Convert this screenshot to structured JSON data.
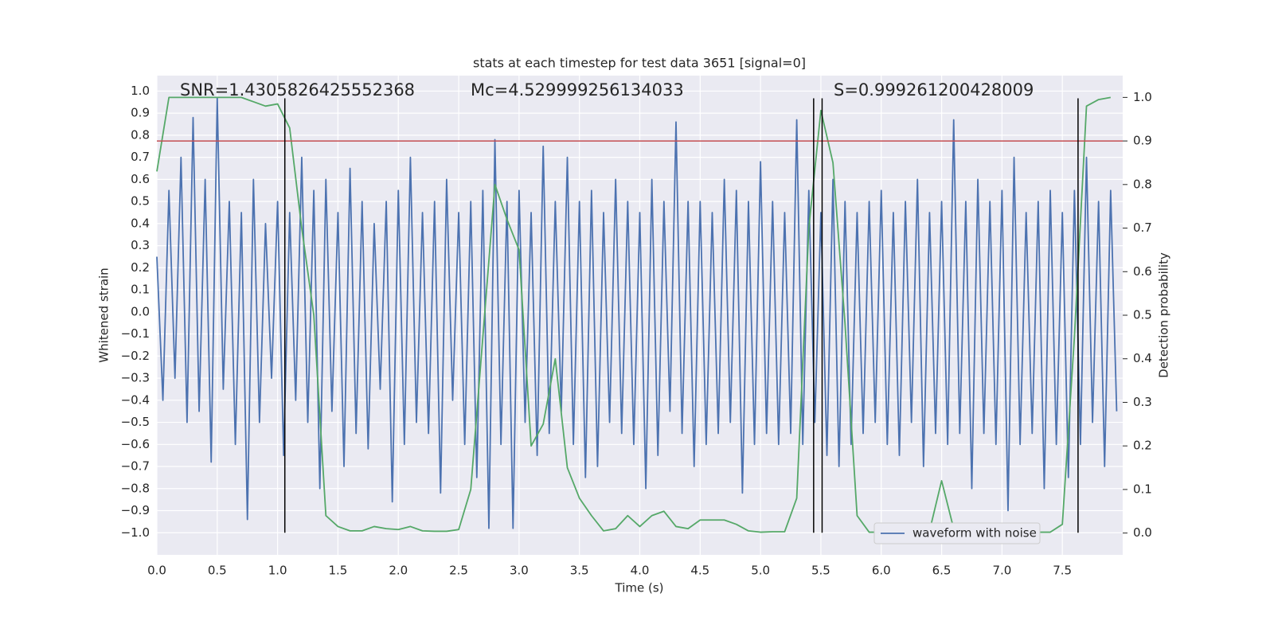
{
  "chart_data": {
    "type": "line",
    "title": "stats at each timestep for test data 3651 [signal=0]",
    "xlabel": "Time (s)",
    "ylabel": "Whitened strain",
    "y2label": "Detection probability",
    "annotations": [
      "SNR=1.4305826425552368",
      "Mc=4.529999256134033",
      "S=0.999261200428009"
    ],
    "xlim": [
      0,
      8
    ],
    "ylim": [
      -1.1,
      1.07
    ],
    "y2lim": [
      -0.05,
      1.05
    ],
    "grid": true,
    "legend": "lower right",
    "background": "#eaeaf2",
    "xticks": [
      {
        "value": 0,
        "label": "0.0"
      },
      0.5,
      {
        "value": 1,
        "label": "1.0"
      },
      1.5,
      {
        "value": 2,
        "label": "2.0"
      },
      2.5,
      {
        "value": 3,
        "label": "3.0"
      },
      3.5,
      {
        "value": 4,
        "label": "4.0"
      },
      4.5,
      {
        "value": 5,
        "label": "5.0"
      },
      5.5,
      {
        "value": 6,
        "label": "6.0"
      },
      6.5,
      {
        "value": 7,
        "label": "7.0"
      },
      7.5
    ],
    "yticks": [
      {
        "value": -1,
        "label": "−1.0"
      },
      {
        "value": -0.9,
        "label": "−0.9"
      },
      {
        "value": -0.8,
        "label": "−0.8"
      },
      {
        "value": -0.7,
        "label": "−0.7"
      },
      {
        "value": -0.6,
        "label": "−0.6"
      },
      {
        "value": -0.5,
        "label": "−0.5"
      },
      {
        "value": -0.4,
        "label": "−0.4"
      },
      {
        "value": -0.3,
        "label": "−0.3"
      },
      {
        "value": -0.2,
        "label": "−0.2"
      },
      {
        "value": -0.1,
        "label": "−0.1"
      },
      {
        "value": 0,
        "label": "0.0"
      },
      0.1,
      0.2,
      0.3,
      0.4,
      0.5,
      0.6,
      0.7,
      0.8,
      0.9,
      {
        "value": 1,
        "label": "1.0"
      }
    ],
    "y2ticks": [
      {
        "value": 0,
        "label": "0.0"
      },
      0.1,
      0.2,
      0.3,
      0.4,
      0.5,
      0.6,
      0.7,
      0.8,
      0.9,
      {
        "value": 1,
        "label": "1.0"
      }
    ],
    "vlines": [
      1.06,
      5.44,
      5.51,
      7.63
    ],
    "vline_color": "#000000",
    "hline": {
      "value": 0.9,
      "axis": "y2",
      "color": "#c44e52"
    },
    "series": [
      {
        "name": "waveform with noise",
        "color": "#4c72b0",
        "x": [
          0,
          0.05,
          0.1,
          0.15,
          0.2,
          0.25,
          0.3,
          0.35,
          0.4,
          0.45,
          0.5,
          0.55,
          0.6,
          0.65,
          0.7,
          0.75,
          0.8,
          0.85,
          0.9,
          0.95,
          1,
          1.05,
          1.1,
          1.15,
          1.2,
          1.25,
          1.3,
          1.35,
          1.4,
          1.45,
          1.5,
          1.55,
          1.6,
          1.65,
          1.7,
          1.75,
          1.8,
          1.85,
          1.9,
          1.95,
          2,
          2.05,
          2.1,
          2.15,
          2.2,
          2.25,
          2.3,
          2.35,
          2.4,
          2.45,
          2.5,
          2.55,
          2.6,
          2.65,
          2.7,
          2.75,
          2.8,
          2.85,
          2.9,
          2.95,
          3,
          3.05,
          3.1,
          3.15,
          3.2,
          3.25,
          3.3,
          3.35,
          3.4,
          3.45,
          3.5,
          3.55,
          3.6,
          3.65,
          3.7,
          3.75,
          3.8,
          3.85,
          3.9,
          3.95,
          4,
          4.05,
          4.1,
          4.15,
          4.2,
          4.25,
          4.3,
          4.35,
          4.4,
          4.45,
          4.5,
          4.55,
          4.6,
          4.65,
          4.7,
          4.75,
          4.8,
          4.85,
          4.9,
          4.95,
          5,
          5.05,
          5.1,
          5.15,
          5.2,
          5.25,
          5.3,
          5.35,
          5.4,
          5.45,
          5.5,
          5.55,
          5.6,
          5.65,
          5.7,
          5.75,
          5.8,
          5.85,
          5.9,
          5.95,
          6,
          6.05,
          6.1,
          6.15,
          6.2,
          6.25,
          6.3,
          6.35,
          6.4,
          6.45,
          6.5,
          6.55,
          6.6,
          6.65,
          6.7,
          6.75,
          6.8,
          6.85,
          6.9,
          6.95,
          7,
          7.05,
          7.1,
          7.15,
          7.2,
          7.25,
          7.3,
          7.35,
          7.4,
          7.45,
          7.5,
          7.55,
          7.6,
          7.65,
          7.7,
          7.75,
          7.8,
          7.85,
          7.9,
          7.95
        ],
        "values": [
          0.25,
          -0.4,
          0.55,
          -0.3,
          0.7,
          -0.5,
          0.88,
          -0.45,
          0.6,
          -0.68,
          0.97,
          -0.35,
          0.5,
          -0.6,
          0.45,
          -0.94,
          0.6,
          -0.5,
          0.4,
          -0.3,
          0.5,
          -0.65,
          0.45,
          -0.4,
          0.7,
          -0.5,
          0.55,
          -0.8,
          0.6,
          -0.45,
          0.45,
          -0.7,
          0.65,
          -0.55,
          0.5,
          -0.62,
          0.4,
          -0.35,
          0.5,
          -0.86,
          0.55,
          -0.6,
          0.7,
          -0.5,
          0.45,
          -0.55,
          0.5,
          -0.82,
          0.6,
          -0.4,
          0.45,
          -0.6,
          0.5,
          -0.75,
          0.55,
          -0.98,
          0.78,
          -0.6,
          0.5,
          -0.98,
          0.55,
          -0.5,
          0.45,
          -0.65,
          0.75,
          -0.55,
          0.5,
          -0.45,
          0.7,
          -0.6,
          0.5,
          -0.75,
          0.55,
          -0.7,
          0.45,
          -0.5,
          0.6,
          -0.55,
          0.5,
          -0.6,
          0.45,
          -0.8,
          0.6,
          -0.65,
          0.5,
          -0.45,
          0.86,
          -0.55,
          0.5,
          -0.7,
          0.5,
          -0.6,
          0.45,
          -0.55,
          0.6,
          -0.5,
          0.55,
          -0.82,
          0.5,
          -0.6,
          0.68,
          -0.55,
          0.5,
          -0.6,
          0.45,
          -0.55,
          0.87,
          -0.6,
          0.55,
          -0.5,
          0.45,
          -0.65,
          0.6,
          -0.7,
          0.5,
          -0.6,
          0.45,
          -0.55,
          0.5,
          -0.5,
          0.55,
          -0.6,
          0.45,
          -0.65,
          0.5,
          -0.5,
          0.6,
          -0.7,
          0.45,
          -0.55,
          0.5,
          -0.6,
          0.87,
          -0.55,
          0.5,
          -0.8,
          0.6,
          -0.55,
          0.5,
          -0.6,
          0.55,
          -0.9,
          0.7,
          -0.6,
          0.45,
          -0.55,
          0.5,
          -0.8,
          0.55,
          -0.6,
          0.45,
          -0.75,
          0.55,
          -0.6,
          0.7,
          -0.5,
          0.5,
          -0.7,
          0.55,
          -0.45
        ]
      },
      {
        "color": "#55a868",
        "axis": "y2",
        "x": [
          0,
          0.1,
          0.2,
          0.3,
          0.4,
          0.5,
          0.6,
          0.7,
          0.8,
          0.9,
          1,
          1.1,
          1.2,
          1.3,
          1.4,
          1.5,
          1.6,
          1.7,
          1.8,
          1.9,
          2,
          2.1,
          2.2,
          2.3,
          2.4,
          2.5,
          2.6,
          2.7,
          2.8,
          2.9,
          3,
          3.1,
          3.2,
          3.3,
          3.4,
          3.5,
          3.6,
          3.7,
          3.8,
          3.9,
          4,
          4.1,
          4.2,
          4.3,
          4.4,
          4.5,
          4.6,
          4.7,
          4.8,
          4.9,
          5,
          5.1,
          5.2,
          5.3,
          5.4,
          5.5,
          5.6,
          5.7,
          5.8,
          5.9,
          6,
          6.1,
          6.2,
          6.3,
          6.4,
          6.5,
          6.6,
          6.7,
          6.8,
          6.9,
          7,
          7.1,
          7.2,
          7.3,
          7.4,
          7.5,
          7.6,
          7.7,
          7.8,
          7.9
        ],
        "values": [
          0.83,
          1.0,
          1.0,
          1.0,
          1.0,
          1.0,
          1.0,
          1.0,
          0.99,
          0.98,
          0.985,
          0.93,
          0.7,
          0.5,
          0.04,
          0.015,
          0.005,
          0.005,
          0.015,
          0.01,
          0.008,
          0.015,
          0.005,
          0.004,
          0.004,
          0.008,
          0.1,
          0.45,
          0.8,
          0.72,
          0.65,
          0.2,
          0.25,
          0.4,
          0.15,
          0.08,
          0.04,
          0.005,
          0.01,
          0.04,
          0.015,
          0.04,
          0.05,
          0.015,
          0.01,
          0.03,
          0.03,
          0.03,
          0.02,
          0.005,
          0.002,
          0.003,
          0.003,
          0.08,
          0.7,
          0.97,
          0.85,
          0.48,
          0.04,
          0.002,
          0.002,
          0.002,
          0.002,
          0.008,
          0.005,
          0.12,
          0.01,
          0.005,
          0.01,
          0.003,
          0.002,
          0.002,
          0.002,
          0.002,
          0.002,
          0.02,
          0.45,
          0.98,
          0.995,
          1.0
        ]
      }
    ]
  }
}
